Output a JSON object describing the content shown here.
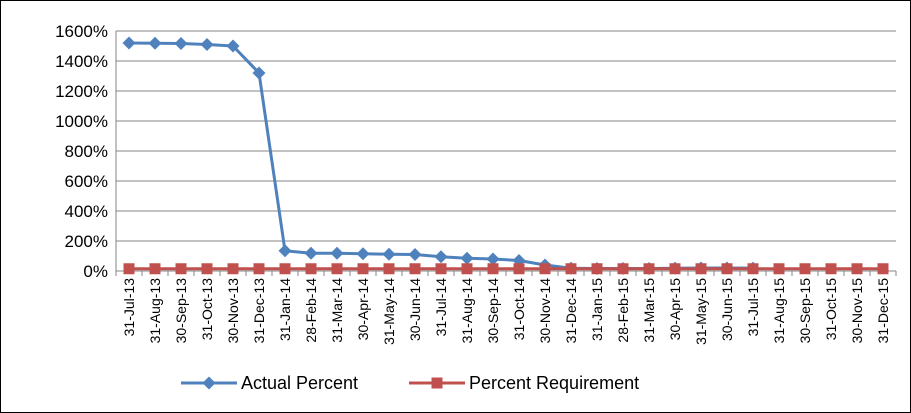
{
  "chart_data": {
    "type": "line",
    "title": "",
    "xlabel": "",
    "ylabel": "",
    "ylim": [
      0,
      16
    ],
    "y_ticks": [
      "0%",
      "200%",
      "400%",
      "600%",
      "800%",
      "1000%",
      "1200%",
      "1400%",
      "1600%"
    ],
    "grid": true,
    "legend_position": "bottom",
    "categories": [
      "31-Jul-13",
      "31-Aug-13",
      "30-Sep-13",
      "31-Oct-13",
      "30-Nov-13",
      "31-Dec-13",
      "31-Jan-14",
      "28-Feb-14",
      "31-Mar-14",
      "30-Apr-14",
      "31-May-14",
      "30-Jun-14",
      "31-Jul-14",
      "31-Aug-14",
      "30-Sep-14",
      "31-Oct-14",
      "30-Nov-14",
      "31-Dec-14",
      "31-Jan-15",
      "28-Feb-15",
      "31-Mar-15",
      "30-Apr-15",
      "31-May-15",
      "30-Jun-15",
      "31-Jul-15",
      "31-Aug-15",
      "30-Sep-15",
      "31-Oct-15",
      "30-Nov-15",
      "31-Dec-15"
    ],
    "series": [
      {
        "name": "Actual Percent",
        "color": "#4F81BD",
        "marker": "diamond",
        "values": [
          15.2,
          15.18,
          15.17,
          15.1,
          15.0,
          13.2,
          1.35,
          1.18,
          1.18,
          1.15,
          1.12,
          1.1,
          0.95,
          0.85,
          0.8,
          0.7,
          0.4,
          0.18,
          0.17,
          0.17,
          0.17,
          0.18,
          0.2,
          0.2,
          0.19,
          null,
          null,
          null,
          null,
          null
        ]
      },
      {
        "name": "Percent Requirement",
        "color": "#C0504D",
        "marker": "square",
        "values": [
          0.15,
          0.15,
          0.15,
          0.15,
          0.15,
          0.15,
          0.15,
          0.15,
          0.15,
          0.15,
          0.15,
          0.15,
          0.15,
          0.15,
          0.15,
          0.15,
          0.15,
          0.15,
          0.15,
          0.15,
          0.15,
          0.15,
          0.15,
          0.15,
          0.15,
          0.15,
          0.15,
          0.15,
          0.15,
          0.15
        ]
      }
    ]
  }
}
